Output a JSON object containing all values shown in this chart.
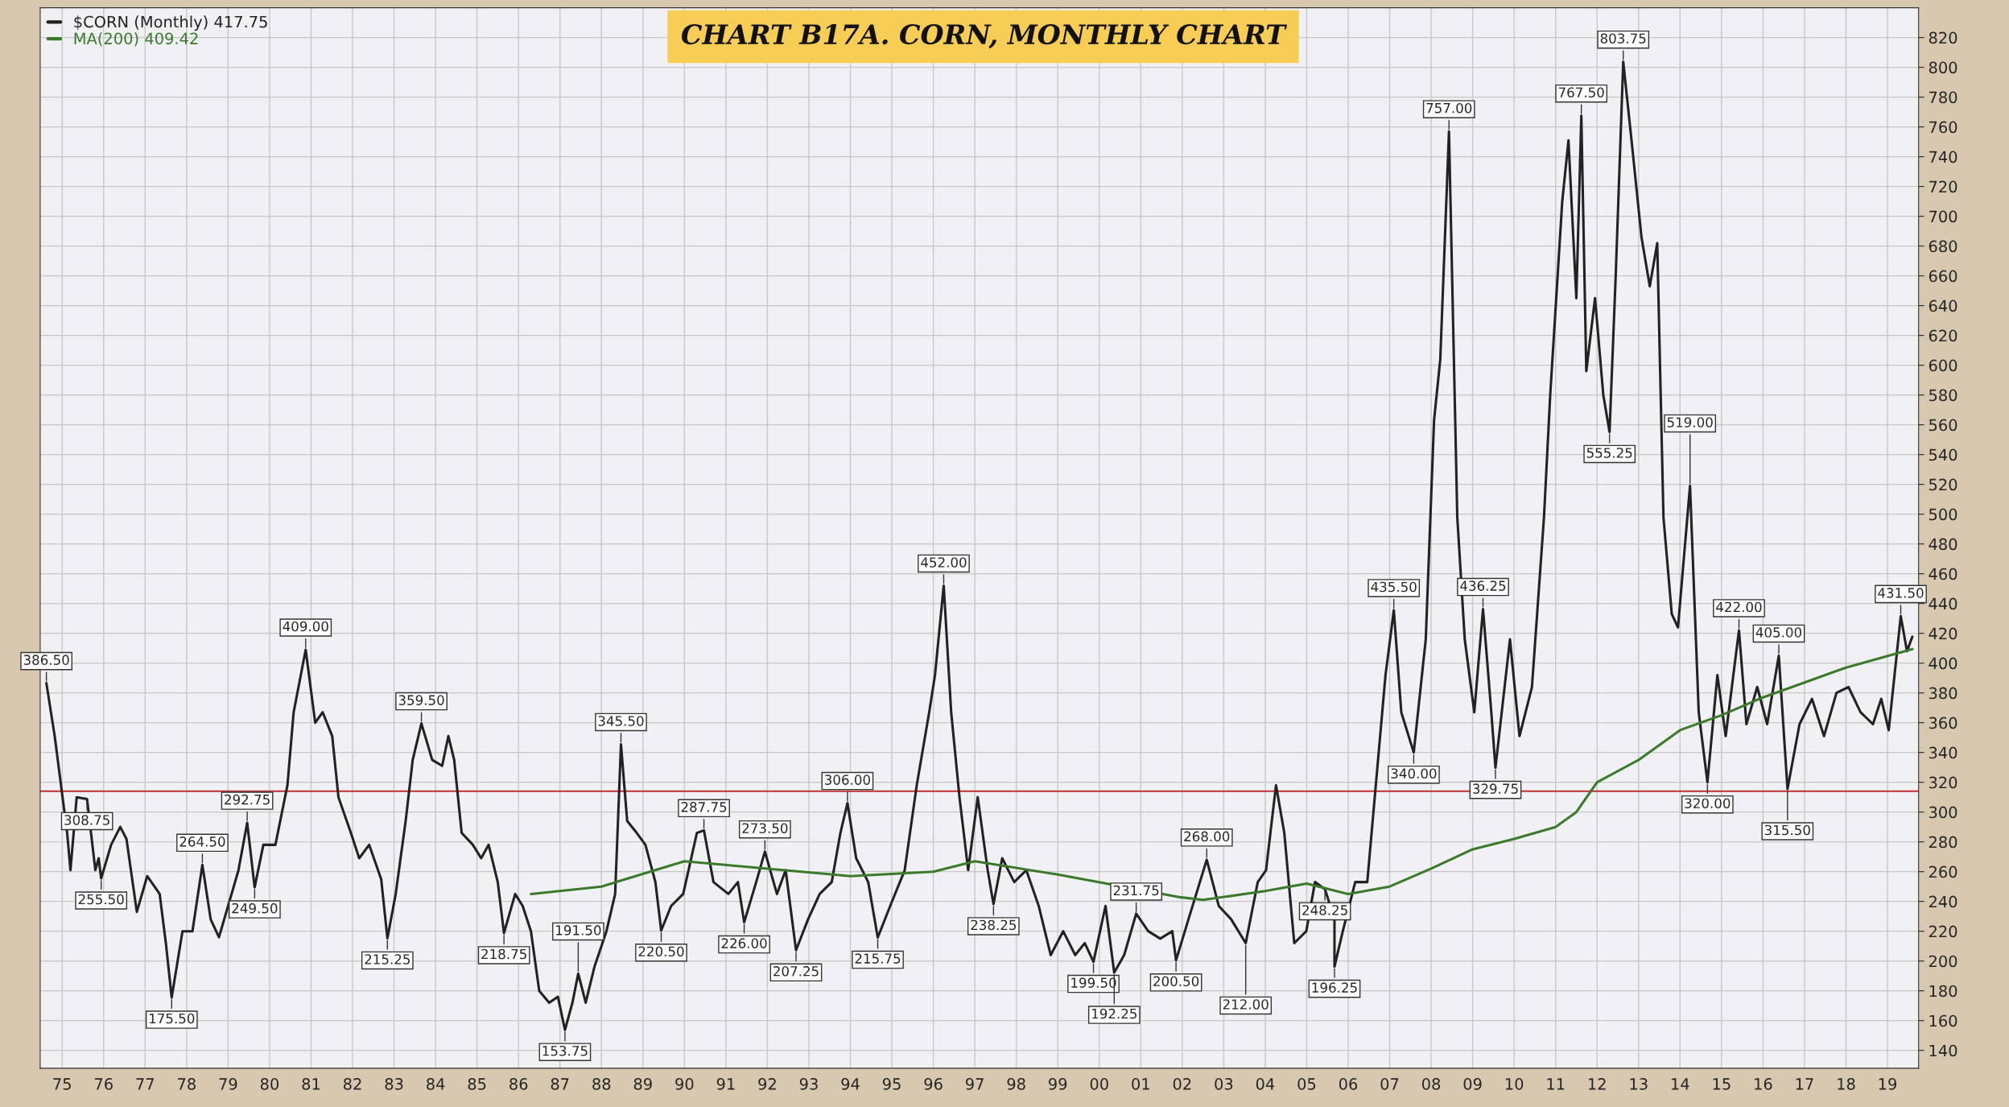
{
  "chart_data": {
    "type": "line",
    "title": "CHART B17A. CORN, MONTHLY CHART",
    "series": [
      {
        "name": "$CORN (Monthly) 417.75",
        "color": "#222222",
        "x": [
          1974.62,
          1974.82,
          1975.12,
          1975.2,
          1975.35,
          1975.6,
          1975.8,
          1975.88,
          1975.94,
          1976.18,
          1976.4,
          1976.55,
          1976.8,
          1977.05,
          1977.35,
          1977.5,
          1977.64,
          1977.9,
          1978.14,
          1978.38,
          1978.58,
          1978.78,
          1979.0,
          1979.25,
          1979.46,
          1979.64,
          1979.85,
          1980.14,
          1980.43,
          1980.58,
          1980.87,
          1981.1,
          1981.28,
          1981.51,
          1981.66,
          1981.96,
          1982.16,
          1982.4,
          1982.69,
          1982.84,
          1983.04,
          1983.28,
          1983.45,
          1983.66,
          1983.92,
          1984.16,
          1984.31,
          1984.45,
          1984.63,
          1984.9,
          1985.1,
          1985.28,
          1985.5,
          1985.65,
          1985.92,
          1986.1,
          1986.3,
          1986.5,
          1986.74,
          1986.95,
          1987.12,
          1987.3,
          1987.44,
          1987.62,
          1987.83,
          1988.12,
          1988.33,
          1988.47,
          1988.62,
          1988.85,
          1989.06,
          1989.3,
          1989.44,
          1989.68,
          1989.97,
          1990.3,
          1990.47,
          1990.7,
          1991.06,
          1991.29,
          1991.44,
          1991.73,
          1991.94,
          1992.23,
          1992.44,
          1992.69,
          1992.98,
          1993.26,
          1993.55,
          1993.76,
          1993.93,
          1994.14,
          1994.43,
          1994.66,
          1994.96,
          1995.31,
          1995.6,
          1995.9,
          1996.04,
          1996.25,
          1996.43,
          1996.63,
          1996.84,
          1997.07,
          1997.31,
          1997.45,
          1997.66,
          1997.95,
          1998.24,
          1998.54,
          1998.83,
          1999.13,
          1999.42,
          1999.65,
          1999.86,
          2000.15,
          2000.36,
          2000.6,
          2000.89,
          2001.18,
          2001.47,
          2001.76,
          2001.85,
          2002.15,
          2002.59,
          2002.88,
          2003.18,
          2003.53,
          2003.82,
          2004.02,
          2004.26,
          2004.46,
          2004.7,
          2004.99,
          2005.2,
          2005.44,
          2005.67,
          2005.67,
          2005.87,
          2006.17,
          2006.46,
          2006.9,
          2007.1,
          2007.28,
          2007.58,
          2007.87,
          2008.07,
          2008.22,
          2008.43,
          2008.63,
          2008.81,
          2009.04,
          2009.25,
          2009.45,
          2009.55,
          2009.9,
          2010.13,
          2010.43,
          2010.72,
          2010.87,
          2011.16,
          2011.31,
          2011.5,
          2011.62,
          2011.74,
          2011.95,
          2012.15,
          2012.3,
          2012.45,
          2012.63,
          2012.83,
          2013.07,
          2013.27,
          2013.45,
          2013.6,
          2013.8,
          2013.95,
          2014.24,
          2014.45,
          2014.66,
          2014.9,
          2015.1,
          2015.42,
          2015.6,
          2015.86,
          2016.1,
          2016.38,
          2016.59,
          2016.88,
          2017.18,
          2017.47,
          2017.77,
          2018.06,
          2018.35,
          2018.65,
          2018.85,
          2019.03,
          2019.32,
          2019.47,
          2019.6
        ],
        "values": [
          386.5,
          351,
          286,
          261,
          310,
          308.75,
          261,
          269,
          255.5,
          278,
          290,
          282,
          233,
          257,
          245,
          212,
          175.5,
          220,
          220,
          264.5,
          228,
          216,
          237,
          261,
          292.75,
          249.5,
          278,
          278,
          318,
          367,
          409,
          360,
          367,
          351,
          310,
          286,
          269,
          278,
          255,
          215.25,
          245,
          294,
          335,
          359.5,
          335,
          331,
          351,
          335,
          286,
          278,
          269,
          278,
          253,
          218.75,
          245,
          237,
          220,
          180,
          172,
          176,
          153.75,
          172,
          191.5,
          172,
          196,
          220,
          245,
          345.5,
          294,
          286,
          278,
          253,
          220.5,
          237,
          245,
          286,
          287.75,
          253,
          245,
          253,
          226,
          253,
          273.5,
          245,
          261,
          207.25,
          228,
          245,
          253,
          286,
          306,
          269,
          253,
          215.75,
          237,
          261,
          318,
          367,
          392,
          452,
          367,
          310,
          261,
          310,
          261,
          238.25,
          269,
          253,
          261,
          237,
          204,
          220,
          204,
          212,
          199.5,
          237,
          192.25,
          204,
          231.75,
          220,
          215,
          220,
          200.5,
          228,
          268,
          237,
          228,
          212,
          253,
          261,
          318,
          286,
          212,
          220,
          253,
          248.25,
          228,
          196.25,
          220,
          253,
          253,
          392,
          435.5,
          367,
          340,
          416,
          563,
          604,
          757,
          498,
          416,
          367,
          436.25,
          367,
          329.75,
          416,
          351,
          384,
          498,
          580,
          710,
          751,
          645,
          767.5,
          596,
          645,
          580,
          555.25,
          661,
          803.75,
          751,
          686,
          653,
          682,
          498,
          433,
          424,
          519,
          367,
          320,
          392,
          351,
          422,
          359,
          384,
          359,
          405,
          315.5,
          359,
          376,
          351,
          380,
          384,
          367,
          359,
          376,
          355,
          431.5,
          408,
          417.75
        ]
      },
      {
        "name": "MA(200) 409.42",
        "color": "#3a7a2a",
        "x": [
          1986.3,
          1988,
          1990,
          1992,
          1994,
          1996,
          1997,
          1999,
          2001.9,
          2002.5,
          2004,
          2005,
          2006,
          2007,
          2008,
          2009,
          2010,
          2011,
          2011.5,
          2012,
          2013,
          2014,
          2015,
          2016,
          2017,
          2018,
          2019.6
        ],
        "values": [
          245,
          250,
          267,
          262,
          257,
          260,
          267,
          258,
          243,
          241,
          247,
          252,
          245,
          250,
          262,
          275,
          282,
          290,
          300,
          320,
          335,
          355,
          365,
          377,
          387,
          397,
          409.42
        ]
      }
    ],
    "ref_lines": [
      {
        "axis": "y",
        "value": 314,
        "color": "#c03030"
      }
    ],
    "annotations": [
      {
        "text": "386.50",
        "x": 1974.62,
        "y": 386.5
      },
      {
        "text": "308.75",
        "x": 1975.6,
        "y": 308.75
      },
      {
        "text": "255.50",
        "x": 1975.94,
        "y": 255.5
      },
      {
        "text": "175.50",
        "x": 1977.64,
        "y": 175.5
      },
      {
        "text": "264.50",
        "x": 1978.38,
        "y": 264.5
      },
      {
        "text": "292.75",
        "x": 1979.46,
        "y": 292.75
      },
      {
        "text": "249.50",
        "x": 1979.64,
        "y": 249.5
      },
      {
        "text": "409.00",
        "x": 1980.87,
        "y": 409
      },
      {
        "text": "215.25",
        "x": 1982.84,
        "y": 215.25
      },
      {
        "text": "359.50",
        "x": 1983.66,
        "y": 359.5
      },
      {
        "text": "218.75",
        "x": 1985.65,
        "y": 218.75
      },
      {
        "text": "153.75",
        "x": 1987.12,
        "y": 153.75
      },
      {
        "text": "191.50",
        "x": 1987.44,
        "y": 191.5
      },
      {
        "text": "345.50",
        "x": 1988.47,
        "y": 345.5
      },
      {
        "text": "220.50",
        "x": 1989.44,
        "y": 220.5
      },
      {
        "text": "287.75",
        "x": 1990.47,
        "y": 287.75
      },
      {
        "text": "226.00",
        "x": 1991.44,
        "y": 226
      },
      {
        "text": "273.50",
        "x": 1991.94,
        "y": 273.5
      },
      {
        "text": "207.25",
        "x": 1992.69,
        "y": 207.25
      },
      {
        "text": "306.00",
        "x": 1993.93,
        "y": 306
      },
      {
        "text": "215.75",
        "x": 1994.66,
        "y": 215.75
      },
      {
        "text": "452.00",
        "x": 1996.25,
        "y": 452
      },
      {
        "text": "238.25",
        "x": 1997.45,
        "y": 238.25
      },
      {
        "text": "199.50",
        "x": 1999.86,
        "y": 199.5
      },
      {
        "text": "192.25",
        "x": 2000.36,
        "y": 192.25
      },
      {
        "text": "231.75",
        "x": 2000.89,
        "y": 231.75
      },
      {
        "text": "200.50",
        "x": 2001.85,
        "y": 200.5
      },
      {
        "text": "268.00",
        "x": 2002.59,
        "y": 268
      },
      {
        "text": "212.00",
        "x": 2003.53,
        "y": 212
      },
      {
        "text": "248.25",
        "x": 2005.44,
        "y": 248.25
      },
      {
        "text": "196.25",
        "x": 2005.67,
        "y": 196.25
      },
      {
        "text": "435.50",
        "x": 2007.1,
        "y": 435.5
      },
      {
        "text": "340.00",
        "x": 2007.58,
        "y": 340
      },
      {
        "text": "757.00",
        "x": 2008.43,
        "y": 757
      },
      {
        "text": "436.25",
        "x": 2009.25,
        "y": 436.25
      },
      {
        "text": "329.75",
        "x": 2009.55,
        "y": 329.75
      },
      {
        "text": "767.50",
        "x": 2011.62,
        "y": 767.5
      },
      {
        "text": "555.25",
        "x": 2012.3,
        "y": 555.25
      },
      {
        "text": "803.75",
        "x": 2012.63,
        "y": 803.75
      },
      {
        "text": "519.00",
        "x": 2014.24,
        "y": 519
      },
      {
        "text": "320.00",
        "x": 2014.66,
        "y": 320
      },
      {
        "text": "422.00",
        "x": 2015.42,
        "y": 422
      },
      {
        "text": "405.00",
        "x": 2016.38,
        "y": 405
      },
      {
        "text": "315.50",
        "x": 2016.59,
        "y": 315.5
      },
      {
        "text": "431.50",
        "x": 2019.32,
        "y": 431.5
      }
    ],
    "xlim": [
      1974.47,
      2019.75
    ],
    "ylim": [
      128,
      840
    ],
    "xticks": [
      {
        "value": 1975,
        "label": "75"
      },
      {
        "value": 1976,
        "label": "76"
      },
      {
        "value": 1977,
        "label": "77"
      },
      {
        "value": 1978,
        "label": "78"
      },
      {
        "value": 1979,
        "label": "79"
      },
      {
        "value": 1980,
        "label": "80"
      },
      {
        "value": 1981,
        "label": "81"
      },
      {
        "value": 1982,
        "label": "82"
      },
      {
        "value": 1983,
        "label": "83"
      },
      {
        "value": 1984,
        "label": "84"
      },
      {
        "value": 1985,
        "label": "85"
      },
      {
        "value": 1986,
        "label": "86"
      },
      {
        "value": 1987,
        "label": "87"
      },
      {
        "value": 1988,
        "label": "88"
      },
      {
        "value": 1989,
        "label": "89"
      },
      {
        "value": 1990,
        "label": "90"
      },
      {
        "value": 1991,
        "label": "91"
      },
      {
        "value": 1992,
        "label": "92"
      },
      {
        "value": 1993,
        "label": "93"
      },
      {
        "value": 1994,
        "label": "94"
      },
      {
        "value": 1995,
        "label": "95"
      },
      {
        "value": 1996,
        "label": "96"
      },
      {
        "value": 1997,
        "label": "97"
      },
      {
        "value": 1998,
        "label": "98"
      },
      {
        "value": 1999,
        "label": "99"
      },
      {
        "value": 2000,
        "label": "00"
      },
      {
        "value": 2001,
        "label": "01"
      },
      {
        "value": 2002,
        "label": "02"
      },
      {
        "value": 2003,
        "label": "03"
      },
      {
        "value": 2004,
        "label": "04"
      },
      {
        "value": 2005,
        "label": "05"
      },
      {
        "value": 2006,
        "label": "06"
      },
      {
        "value": 2007,
        "label": "07"
      },
      {
        "value": 2008,
        "label": "08"
      },
      {
        "value": 2009,
        "label": "09"
      },
      {
        "value": 2010,
        "label": "10"
      },
      {
        "value": 2011,
        "label": "11"
      },
      {
        "value": 2012,
        "label": "12"
      },
      {
        "value": 2013,
        "label": "13"
      },
      {
        "value": 2014,
        "label": "14"
      },
      {
        "value": 2015,
        "label": "15"
      },
      {
        "value": 2016,
        "label": "16"
      },
      {
        "value": 2017,
        "label": "17"
      },
      {
        "value": 2018,
        "label": "18"
      },
      {
        "value": 2019,
        "label": "19"
      }
    ],
    "yticks": [
      140,
      160,
      180,
      200,
      220,
      240,
      260,
      280,
      300,
      320,
      340,
      360,
      380,
      400,
      420,
      440,
      460,
      480,
      500,
      520,
      540,
      560,
      580,
      600,
      620,
      640,
      660,
      680,
      700,
      720,
      740,
      760,
      780,
      800,
      820
    ],
    "grid": true,
    "legend": "top left"
  }
}
